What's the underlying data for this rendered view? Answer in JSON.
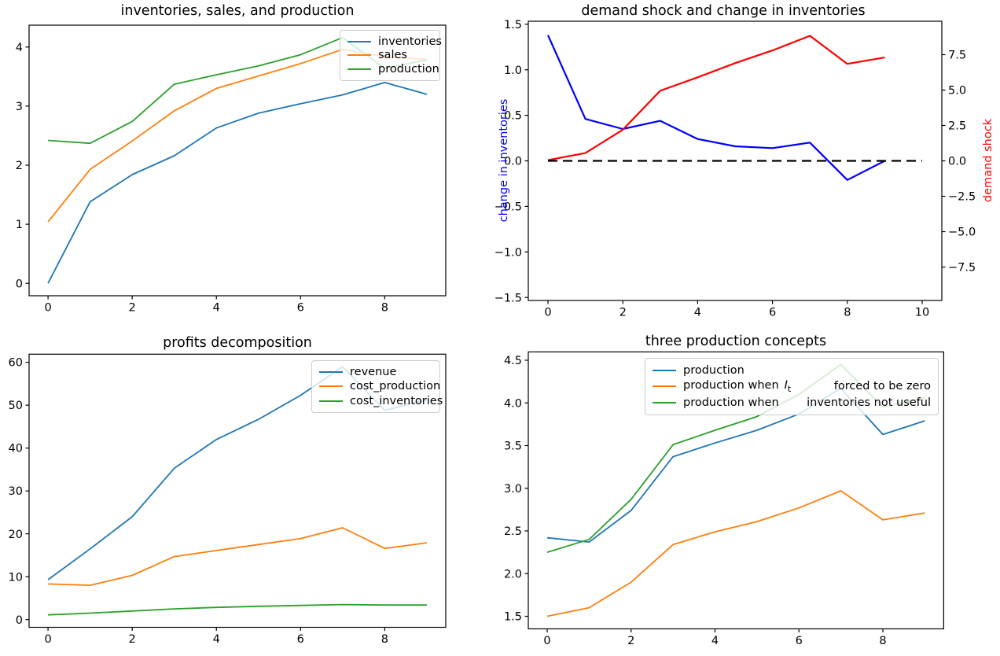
{
  "figure": {
    "background": "#ffffff"
  },
  "colors": {
    "mpl_blue": "#1f77b4",
    "mpl_orange": "#ff7f0e",
    "mpl_green": "#2ca02c",
    "pure_blue": "#0000ff",
    "pure_red": "#ff0000",
    "black": "#000000"
  },
  "chart_data": [
    {
      "id": "inv-sales-prod",
      "type": "line",
      "title": "inventories, sales, and production",
      "x": [
        0,
        1,
        2,
        3,
        4,
        5,
        6,
        7,
        8,
        9
      ],
      "xlim": [
        -0.45,
        9.45
      ],
      "ylim": [
        -0.21,
        4.37
      ],
      "xticks": [
        0,
        2,
        4,
        6,
        8
      ],
      "xtick_labels": [
        "0",
        "2",
        "4",
        "6",
        "8"
      ],
      "yticks": [
        0,
        1,
        2,
        3,
        4
      ],
      "ytick_labels": [
        "0",
        "1",
        "2",
        "3",
        "4"
      ],
      "legend_position": "upper right",
      "series": [
        {
          "name": "inventories",
          "color": "#1f77b4",
          "values": [
            0.0,
            1.38,
            1.84,
            2.16,
            2.63,
            2.88,
            3.04,
            3.19,
            3.4,
            3.2
          ]
        },
        {
          "name": "sales",
          "color": "#ff7f0e",
          "values": [
            1.04,
            1.93,
            2.41,
            2.92,
            3.3,
            3.51,
            3.72,
            3.96,
            3.84,
            3.79
          ]
        },
        {
          "name": "production",
          "color": "#2ca02c",
          "values": [
            2.42,
            2.37,
            2.74,
            3.37,
            3.53,
            3.68,
            3.87,
            4.16,
            3.64,
            3.78
          ]
        }
      ]
    },
    {
      "id": "demand-shock",
      "type": "line-dual-axis",
      "title": "demand shock and change in inventories",
      "x": [
        0,
        1,
        2,
        3,
        4,
        5,
        6,
        7,
        8,
        9
      ],
      "xlim": [
        -0.525,
        10.525
      ],
      "ylim": [
        -1.533,
        1.533
      ],
      "ylim_right": [
        -9.86,
        9.86
      ],
      "xticks": [
        0,
        2,
        4,
        6,
        8,
        10
      ],
      "xtick_labels": [
        "0",
        "2",
        "4",
        "6",
        "8",
        "10"
      ],
      "left_axis": {
        "label": "change in inventories",
        "color": "#0000ff",
        "ticks": [
          -1.5,
          -1.0,
          -0.5,
          0.0,
          0.5,
          1.0,
          1.5
        ],
        "tick_labels": [
          "−1.5",
          "−1.0",
          "−0.5",
          "0.0",
          "0.5",
          "1.0",
          "1.5"
        ]
      },
      "right_axis": {
        "label": "demand shock",
        "color": "#ff0000",
        "ticks": [
          -7.5,
          -5.0,
          -2.5,
          0.0,
          2.5,
          5.0,
          7.5
        ],
        "tick_labels": [
          "−7.5",
          "−5.0",
          "−2.5",
          "0.0",
          "2.5",
          "5.0",
          "7.5"
        ]
      },
      "series": [
        {
          "name": "change in inventories",
          "axis": "left",
          "color": "#0000ff",
          "values": [
            1.38,
            0.46,
            0.35,
            0.44,
            0.24,
            0.16,
            0.14,
            0.2,
            -0.21,
            0.0
          ]
        },
        {
          "name": "demand shock",
          "axis": "right",
          "color": "#ff0000",
          "values": [
            0.05,
            0.55,
            2.2,
            4.95,
            5.9,
            6.9,
            7.8,
            8.83,
            6.85,
            7.3
          ]
        },
        {
          "name": "zero line",
          "axis": "left",
          "color": "#000000",
          "dashed": true,
          "x": [
            0,
            1,
            2,
            3,
            4,
            5,
            6,
            7,
            8,
            9,
            10
          ],
          "values": [
            0,
            0,
            0,
            0,
            0,
            0,
            0,
            0,
            0,
            0,
            0
          ]
        }
      ]
    },
    {
      "id": "profits-decomposition",
      "type": "line",
      "title": "profits decomposition",
      "x": [
        0,
        1,
        2,
        3,
        4,
        5,
        6,
        7,
        8,
        9
      ],
      "xlim": [
        -0.45,
        9.45
      ],
      "ylim": [
        -1.8,
        61.9
      ],
      "xticks": [
        0,
        2,
        4,
        6,
        8
      ],
      "xtick_labels": [
        "0",
        "2",
        "4",
        "6",
        "8"
      ],
      "yticks": [
        0,
        10,
        20,
        30,
        40,
        50,
        60
      ],
      "ytick_labels": [
        "0",
        "10",
        "20",
        "30",
        "40",
        "50",
        "60"
      ],
      "legend_position": "upper right",
      "series": [
        {
          "name": "revenue",
          "color": "#1f77b4",
          "values": [
            9.3,
            16.5,
            24.0,
            35.3,
            42.0,
            46.7,
            52.3,
            59.0,
            48.8,
            51.3
          ]
        },
        {
          "name": "cost_production",
          "color": "#ff7f0e",
          "values": [
            8.3,
            8.0,
            10.3,
            14.7,
            16.1,
            17.5,
            18.9,
            21.4,
            16.6,
            17.9
          ]
        },
        {
          "name": "cost_inventories",
          "color": "#2ca02c",
          "values": [
            1.1,
            1.5,
            2.0,
            2.5,
            2.85,
            3.1,
            3.3,
            3.5,
            3.4,
            3.4
          ]
        }
      ]
    },
    {
      "id": "three-production-concepts",
      "type": "line",
      "title": "three production concepts",
      "x": [
        0,
        1,
        2,
        3,
        4,
        5,
        6,
        7,
        8,
        9
      ],
      "xlim": [
        -0.45,
        9.45
      ],
      "ylim": [
        1.3525,
        4.5975
      ],
      "xticks": [
        0,
        2,
        4,
        6,
        8
      ],
      "xtick_labels": [
        "0",
        "2",
        "4",
        "6",
        "8"
      ],
      "yticks": [
        1.5,
        2.0,
        2.5,
        3.0,
        3.5,
        4.0,
        4.5
      ],
      "ytick_labels": [
        "1.5",
        "2.0",
        "2.5",
        "3.0",
        "3.5",
        "4.0",
        "4.5"
      ],
      "legend_position": "upper center",
      "series": [
        {
          "name": "production",
          "color": "#1f77b4",
          "values": [
            2.42,
            2.37,
            2.74,
            3.37,
            3.53,
            3.68,
            3.87,
            4.17,
            3.63,
            3.79
          ]
        },
        {
          "name": "production when It forced to be zero",
          "color": "#ff7f0e",
          "values": [
            1.5,
            1.6,
            1.9,
            2.34,
            2.49,
            2.61,
            2.77,
            2.97,
            2.63,
            2.71
          ]
        },
        {
          "name": "production when inventories not useful",
          "color": "#2ca02c",
          "values": [
            2.25,
            2.4,
            2.87,
            3.51,
            3.68,
            3.84,
            4.1,
            4.45,
            3.95,
            4.06
          ]
        }
      ],
      "legend_rows": [
        {
          "left": "production",
          "right": ""
        },
        {
          "left": "production when",
          "math_var": "I",
          "math_sub": "t",
          "right": "forced to be zero"
        },
        {
          "left": "production when",
          "right": "inventories not useful"
        }
      ]
    }
  ]
}
